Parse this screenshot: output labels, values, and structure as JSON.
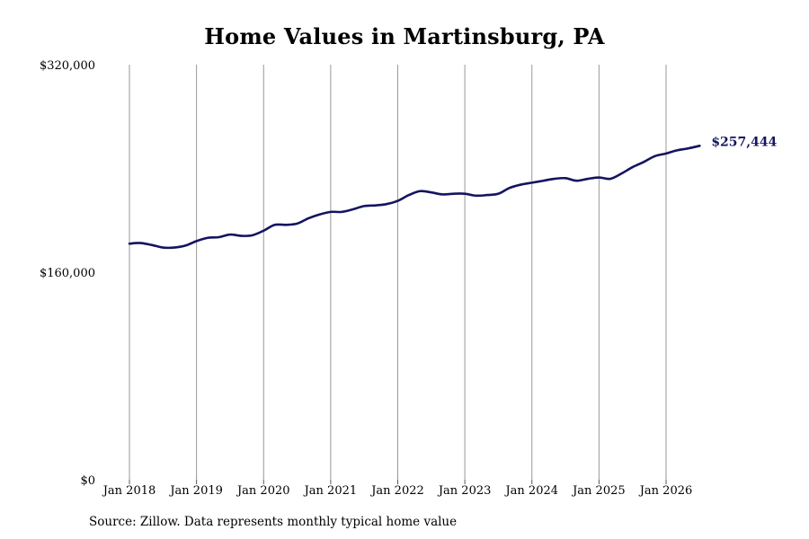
{
  "chart_data": {
    "type": "line",
    "title": "Home Values in Martinsburg, PA",
    "xlabel": "",
    "ylabel": "",
    "ylim": [
      0,
      320000
    ],
    "y_ticks": [
      0,
      160000,
      320000
    ],
    "y_tick_labels": [
      "$0",
      "$160,000",
      "$320,000"
    ],
    "x_ticks": [
      2018,
      2019,
      2020,
      2021,
      2022,
      2023,
      2024,
      2025,
      2026
    ],
    "x_tick_labels": [
      "Jan 2018",
      "Jan 2019",
      "Jan 2020",
      "Jan 2021",
      "Jan 2022",
      "Jan 2023",
      "Jan 2024",
      "Jan 2025",
      "Jan 2026"
    ],
    "grid": "vertical",
    "line_color": "#14145f",
    "grid_color": "#999999",
    "end_label": "$257,444",
    "series": [
      {
        "x": [
          2018.0,
          2018.1667,
          2018.3333,
          2018.5,
          2018.6667,
          2018.8333,
          2019.0,
          2019.1667,
          2019.3333,
          2019.5,
          2019.6667,
          2019.8333,
          2020.0,
          2020.1667,
          2020.3333,
          2020.5,
          2020.6667,
          2020.8333,
          2021.0,
          2021.1667,
          2021.3333,
          2021.5,
          2021.6667,
          2021.8333,
          2022.0,
          2022.1667,
          2022.3333,
          2022.5,
          2022.6667,
          2022.8333,
          2023.0,
          2023.1667,
          2023.3333,
          2023.5,
          2023.6667,
          2023.8333,
          2024.0,
          2024.1667,
          2024.3333,
          2024.5,
          2024.6667,
          2024.8333,
          2025.0,
          2025.1667,
          2025.3333,
          2025.5,
          2025.6667,
          2025.8333,
          2026.0,
          2026.1667,
          2026.3333,
          2026.5
        ],
        "values": [
          182000,
          182500,
          181000,
          179000,
          179000,
          180500,
          184000,
          186500,
          187000,
          189000,
          188000,
          188500,
          192000,
          196500,
          196500,
          197500,
          201500,
          204500,
          206500,
          206500,
          208500,
          211000,
          211500,
          212500,
          215000,
          219500,
          222500,
          221500,
          220000,
          220500,
          220500,
          219000,
          219500,
          220500,
          225000,
          227500,
          229000,
          230500,
          232000,
          232500,
          230500,
          232000,
          233000,
          232000,
          236000,
          241000,
          245000,
          249500,
          251500,
          254000,
          255500,
          257444
        ]
      }
    ]
  },
  "source_note": "Source: Zillow. Data represents monthly typical home value"
}
